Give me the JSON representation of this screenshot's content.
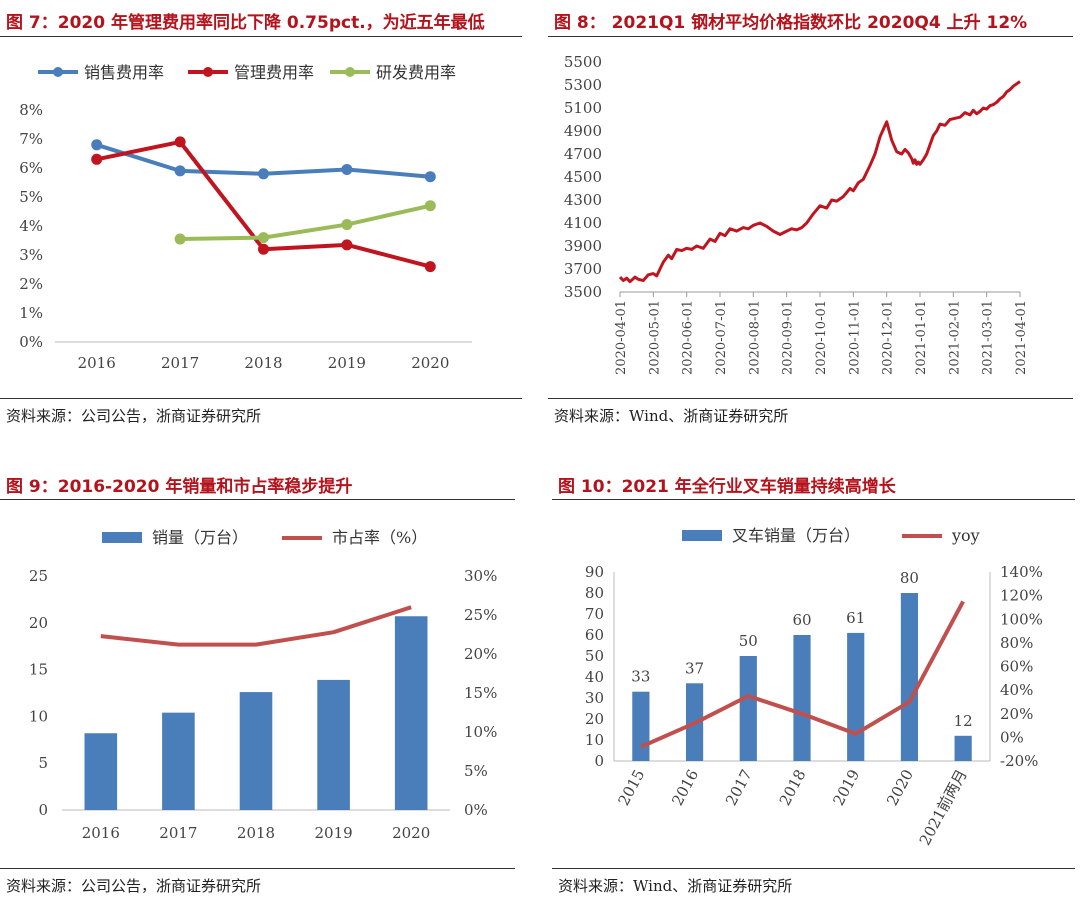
{
  "fig7": {
    "title": "图 7：2020 年管理费用率同比下降 0.75pct.，为近五年最低",
    "source": "资料来源：公司公告，浙商证券研究所"
  },
  "fig8": {
    "title": "图 8：  2021Q1 钢材平均价格指数环比 2020Q4 上升 12%",
    "source": "资料来源：Wind、浙商证券研究所"
  },
  "fig9": {
    "title": "图 9：2016-2020 年销量和市占率稳步提升",
    "source": "资料来源：公司公告，浙商证券研究所"
  },
  "fig10": {
    "title": "图 10：2021 年全行业叉车销量持续高增长",
    "source": "资料来源：Wind、浙商证券研究所"
  },
  "chart_data": [
    {
      "id": "fig7",
      "type": "line",
      "categories": [
        "2016",
        "2017",
        "2018",
        "2019",
        "2020"
      ],
      "ylim": [
        0,
        8
      ],
      "yticks": [
        "0%",
        "1%",
        "2%",
        "3%",
        "4%",
        "5%",
        "6%",
        "7%",
        "8%"
      ],
      "series": [
        {
          "name": "销售费用率",
          "color": "#4a7ebb",
          "values": [
            6.8,
            5.9,
            5.8,
            5.95,
            5.7
          ]
        },
        {
          "name": "管理费用率",
          "color": "#c0151f",
          "values": [
            6.3,
            6.9,
            3.2,
            3.35,
            2.6
          ]
        },
        {
          "name": "研发费用率",
          "color": "#9bbb59",
          "values": [
            null,
            3.55,
            3.6,
            4.05,
            4.7
          ]
        }
      ]
    },
    {
      "id": "fig8",
      "type": "line",
      "ylim": [
        3500,
        5500
      ],
      "yticks": [
        "3500",
        "3700",
        "3900",
        "4100",
        "4300",
        "4500",
        "4700",
        "4900",
        "5100",
        "5300",
        "5500"
      ],
      "xticks": [
        "2020-04-01",
        "2020-05-01",
        "2020-06-01",
        "2020-07-01",
        "2020-08-01",
        "2020-09-01",
        "2020-10-01",
        "2020-11-01",
        "2020-12-01",
        "2021-01-01",
        "2021-02-01",
        "2021-03-01",
        "2021-04-01"
      ],
      "series": [
        {
          "name": "钢材平均价格指数",
          "color": "#c0151f",
          "x": [
            0,
            0.1,
            0.2,
            0.3,
            0.45,
            0.55,
            0.7,
            0.85,
            1.0,
            1.1,
            1.2,
            1.3,
            1.45,
            1.55,
            1.7,
            1.85,
            2.0,
            2.15,
            2.3,
            2.5,
            2.7,
            2.85,
            3.0,
            3.15,
            3.3,
            3.5,
            3.7,
            3.85,
            4.0,
            4.2,
            4.4,
            4.6,
            4.8,
            5.0,
            5.15,
            5.3,
            5.45,
            5.6,
            5.8,
            6.0,
            6.2,
            6.35,
            6.5,
            6.7,
            6.9,
            7.0,
            7.15,
            7.3,
            7.5,
            7.65,
            7.8,
            8.0,
            8.15,
            8.3,
            8.45,
            8.55,
            8.65,
            8.75,
            8.8,
            8.85,
            8.9,
            8.95,
            9.0,
            9.1,
            9.2,
            9.3,
            9.4,
            9.5,
            9.6,
            9.75,
            9.9,
            10.05,
            10.2,
            10.35,
            10.5,
            10.6,
            10.7,
            10.8,
            10.9,
            11.0,
            11.1,
            11.2,
            11.3,
            11.4,
            11.5,
            11.6,
            11.7,
            11.8,
            11.9,
            12.0
          ],
          "values": [
            3630,
            3600,
            3620,
            3590,
            3630,
            3610,
            3600,
            3650,
            3660,
            3640,
            3700,
            3760,
            3820,
            3790,
            3870,
            3860,
            3880,
            3870,
            3900,
            3880,
            3960,
            3940,
            4010,
            3990,
            4050,
            4030,
            4060,
            4050,
            4080,
            4100,
            4070,
            4030,
            4000,
            4030,
            4050,
            4040,
            4060,
            4100,
            4180,
            4250,
            4230,
            4300,
            4290,
            4330,
            4400,
            4380,
            4450,
            4480,
            4600,
            4700,
            4850,
            4980,
            4820,
            4720,
            4700,
            4740,
            4710,
            4660,
            4620,
            4650,
            4610,
            4630,
            4610,
            4650,
            4700,
            4780,
            4860,
            4900,
            4960,
            4950,
            5000,
            5010,
            5020,
            5060,
            5040,
            5080,
            5050,
            5070,
            5100,
            5090,
            5120,
            5130,
            5150,
            5180,
            5200,
            5240,
            5260,
            5290,
            5310,
            5330
          ]
        }
      ]
    },
    {
      "id": "fig9",
      "type": "bar",
      "categories": [
        "2016",
        "2017",
        "2018",
        "2019",
        "2020"
      ],
      "ylim": [
        0,
        25
      ],
      "yticks": [
        "0",
        "5",
        "10",
        "15",
        "20",
        "25"
      ],
      "y2lim": [
        0,
        30
      ],
      "y2ticks": [
        "0%",
        "5%",
        "10%",
        "15%",
        "20%",
        "25%",
        "30%"
      ],
      "series": [
        {
          "name": "销量（万台）",
          "type": "bar",
          "axis": "left",
          "color": "#4a7ebb",
          "values": [
            8.2,
            10.4,
            12.6,
            13.9,
            20.7
          ]
        },
        {
          "name": "市占率（%）",
          "type": "line",
          "axis": "right",
          "color": "#c0504d",
          "values": [
            22.3,
            21.2,
            21.2,
            22.8,
            26.0
          ]
        }
      ]
    },
    {
      "id": "fig10",
      "type": "bar",
      "categories": [
        "2015",
        "2016",
        "2017",
        "2018",
        "2019",
        "2020",
        "2021前两月"
      ],
      "ylim": [
        0,
        90
      ],
      "yticks": [
        "0",
        "10",
        "20",
        "30",
        "40",
        "50",
        "60",
        "70",
        "80",
        "90"
      ],
      "y2lim": [
        -20,
        140
      ],
      "y2ticks": [
        "-20%",
        "0%",
        "20%",
        "40%",
        "60%",
        "80%",
        "100%",
        "120%",
        "140%"
      ],
      "series": [
        {
          "name": "叉车销量（万台）",
          "type": "bar",
          "axis": "left",
          "color": "#4a7ebb",
          "values": [
            33,
            37,
            50,
            60,
            61,
            80,
            12
          ],
          "labels": [
            "33",
            "37",
            "50",
            "60",
            "61",
            "80",
            "12"
          ]
        },
        {
          "name": "yoy",
          "type": "line",
          "axis": "right",
          "color": "#c0504d",
          "values": [
            -8,
            12,
            35,
            20,
            3,
            30,
            115
          ]
        }
      ]
    }
  ]
}
